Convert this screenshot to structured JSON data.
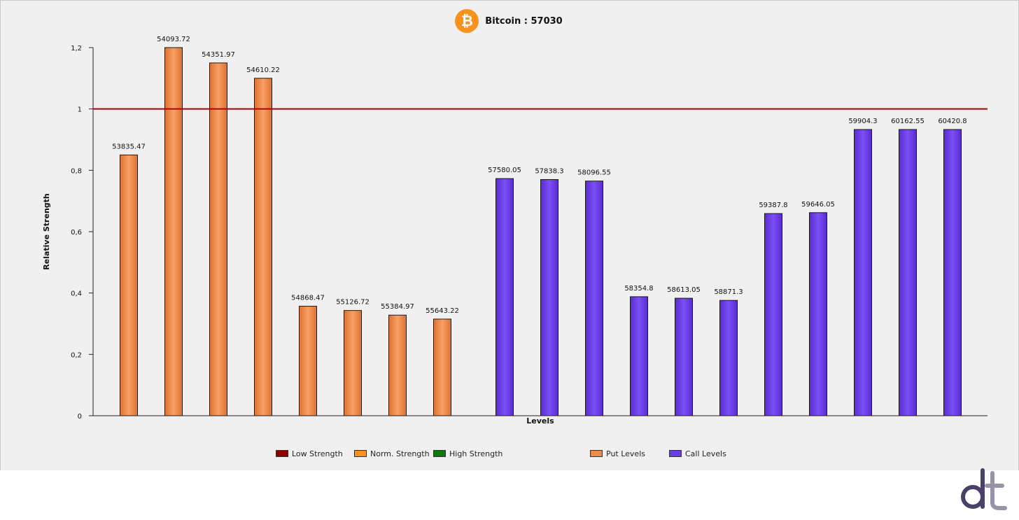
{
  "header": {
    "icon": "bitcoin-icon",
    "title": "Bitcoin : 57030"
  },
  "chart_data": {
    "type": "bar",
    "title": "Bitcoin : 57030",
    "xlabel": "Levels",
    "ylabel": "Relative Strength",
    "ylim": [
      0,
      1.2
    ],
    "yticks": [
      "0",
      "0,2",
      "0,4",
      "0,6",
      "0,8",
      "1",
      "1,2"
    ],
    "reference_line": {
      "y": 1,
      "color": "#b00000"
    },
    "grid": false,
    "series": [
      {
        "name": "Put Levels",
        "color": "#f08a4b",
        "categories": [
          "53835.47",
          "54093.72",
          "54351.97",
          "54610.22",
          "54868.47",
          "55126.72",
          "55384.97",
          "55643.22"
        ],
        "values": [
          0.85,
          1.2,
          1.15,
          1.1,
          0.357,
          0.343,
          0.328,
          0.315
        ]
      },
      {
        "name": "Call Levels",
        "color": "#6a3be8",
        "categories": [
          "57580.05",
          "57838.3",
          "58096.55",
          "58354.8",
          "58613.05",
          "58871.3",
          "59387.8",
          "59646.05",
          "59904.3",
          "60162.55",
          "60420.8"
        ],
        "values": [
          0.773,
          0.77,
          0.765,
          0.388,
          0.383,
          0.376,
          0.659,
          0.662,
          0.933,
          0.933,
          0.933
        ]
      }
    ],
    "legend": {
      "placement": "bottom",
      "items": [
        {
          "label": "Low Strength",
          "color": "#8b0000"
        },
        {
          "label": "Norm. Strength",
          "color": "#f7931a"
        },
        {
          "label": "High Strength",
          "color": "#0a7a0a"
        },
        {
          "label": "Put Levels",
          "color": "#f08a4b"
        },
        {
          "label": "Call Levels",
          "color": "#6a3be8"
        }
      ]
    }
  },
  "logo": {
    "name": "dt-logo-icon"
  }
}
